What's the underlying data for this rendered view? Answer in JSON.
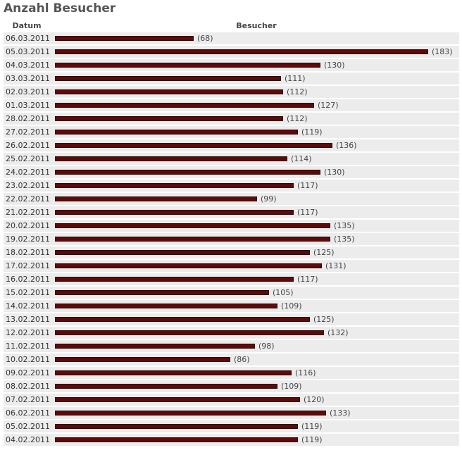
{
  "page": {
    "title": "Anzahl Besucher"
  },
  "table": {
    "col_date": "Datum",
    "col_value": "Besucher"
  },
  "colors": {
    "bar": "#5c0a0a",
    "row_bg": "#ececec",
    "title": "#555555"
  },
  "chart_data": {
    "type": "bar",
    "orientation": "horizontal",
    "title": "Anzahl Besucher",
    "xlabel": "Besucher",
    "ylabel": "Datum",
    "categories": [
      "06.03.2011",
      "05.03.2011",
      "04.03.2011",
      "03.03.2011",
      "02.03.2011",
      "01.03.2011",
      "28.02.2011",
      "27.02.2011",
      "26.02.2011",
      "25.02.2011",
      "24.02.2011",
      "23.02.2011",
      "22.02.2011",
      "21.02.2011",
      "20.02.2011",
      "19.02.2011",
      "18.02.2011",
      "17.02.2011",
      "16.02.2011",
      "15.02.2011",
      "14.02.2011",
      "13.02.2011",
      "12.02.2011",
      "11.02.2011",
      "10.02.2011",
      "09.02.2011",
      "08.02.2011",
      "07.02.2011",
      "06.02.2011",
      "05.02.2011",
      "04.02.2011"
    ],
    "values": [
      68,
      183,
      130,
      111,
      112,
      127,
      112,
      119,
      136,
      114,
      130,
      117,
      99,
      117,
      135,
      135,
      125,
      131,
      117,
      105,
      109,
      125,
      132,
      98,
      86,
      116,
      109,
      120,
      133,
      119,
      119
    ],
    "value_labels": [
      "(68)",
      "(183)",
      "(130)",
      "(111)",
      "(112)",
      "(127)",
      "(112)",
      "(119)",
      "(136)",
      "(114)",
      "(130)",
      "(117)",
      "(99)",
      "(117)",
      "(135)",
      "(135)",
      "(125)",
      "(131)",
      "(117)",
      "(105)",
      "(109)",
      "(125)",
      "(132)",
      "(98)",
      "(86)",
      "(116)",
      "(109)",
      "(120)",
      "(133)",
      "(119)",
      "(119)"
    ],
    "grid": false
  }
}
